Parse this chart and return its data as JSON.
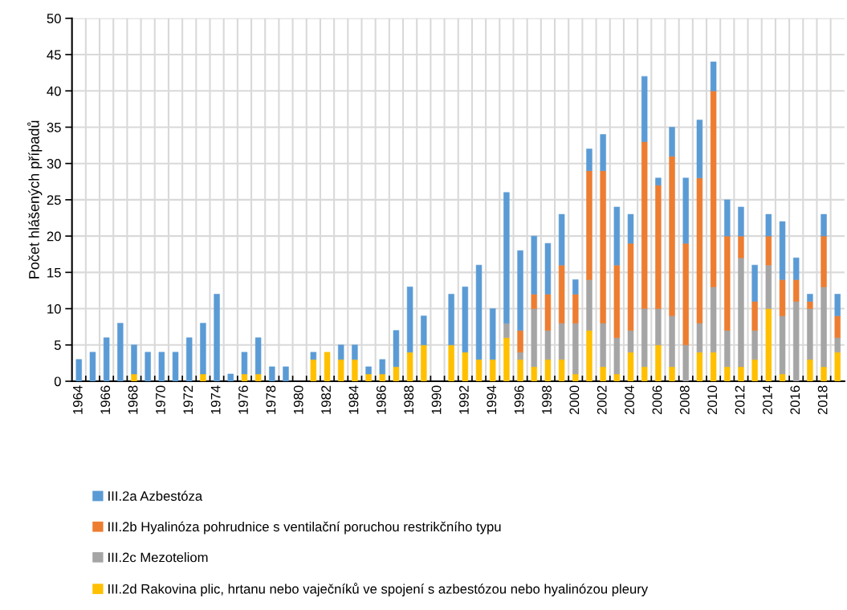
{
  "chart_data": {
    "type": "bar",
    "stacked": true,
    "ylabel": "Počet hlášených případů",
    "categories": [
      "1964",
      null,
      "1966",
      null,
      "1968",
      null,
      "1970",
      null,
      "1972",
      null,
      "1974",
      null,
      "1976",
      null,
      "1978",
      null,
      "1980",
      null,
      "1982",
      null,
      "1984",
      null,
      "1986",
      null,
      "1988",
      null,
      "1990",
      null,
      "1992",
      null,
      "1994",
      null,
      "1996",
      null,
      "1998",
      null,
      "2000",
      null,
      "2002",
      null,
      "2004",
      null,
      "2006",
      null,
      "2008",
      null,
      "2010",
      null,
      "2012",
      null,
      "2014",
      null,
      "2016",
      null,
      "2018",
      null
    ],
    "series": [
      {
        "name": "III.2d Rakovina plic, hrtanu nebo vaječníků ve spojení s azbestózou nebo hyalinózou pleury",
        "color": "#ffc000",
        "values": [
          0,
          0,
          0,
          0,
          1,
          0,
          0,
          0,
          0,
          1,
          0,
          0,
          1,
          1,
          0,
          0,
          0,
          3,
          4,
          3,
          3,
          1,
          1,
          2,
          4,
          5,
          0,
          5,
          4,
          3,
          3,
          6,
          3,
          2,
          3,
          3,
          1,
          7,
          2,
          1,
          4,
          2,
          5,
          2,
          0,
          4,
          4,
          2,
          2,
          3,
          10,
          1,
          0,
          3,
          2,
          4
        ]
      },
      {
        "name": "III.2c Mezoteliom",
        "color": "#a5a5a5",
        "values": [
          0,
          0,
          0,
          0,
          0,
          0,
          0,
          0,
          0,
          0,
          0,
          0,
          0,
          0,
          0,
          0,
          0,
          0,
          0,
          0,
          0,
          0,
          0,
          0,
          0,
          0,
          0,
          0,
          0,
          0,
          0,
          2,
          1,
          8,
          4,
          5,
          7,
          7,
          6,
          5,
          3,
          8,
          5,
          7,
          5,
          4,
          9,
          5,
          15,
          4,
          6,
          8,
          11,
          7,
          11,
          2
        ]
      },
      {
        "name": "III.2b Hyalinóza pohrudnice s ventilační poruchou restrikčního typu",
        "color": "#ed7d31",
        "values": [
          0,
          0,
          0,
          0,
          0,
          0,
          0,
          0,
          0,
          0,
          0,
          0,
          0,
          0,
          0,
          0,
          0,
          0,
          0,
          0,
          0,
          0,
          0,
          0,
          0,
          0,
          0,
          0,
          0,
          0,
          0,
          0,
          3,
          2,
          5,
          8,
          4,
          15,
          21,
          10,
          12,
          23,
          17,
          22,
          14,
          20,
          27,
          13,
          3,
          4,
          4,
          5,
          3,
          1,
          7,
          3
        ]
      },
      {
        "name": "III.2a Azbestóza",
        "color": "#5b9bd5",
        "values": [
          3,
          4,
          6,
          8,
          4,
          4,
          4,
          4,
          6,
          7,
          12,
          1,
          3,
          5,
          2,
          2,
          0,
          1,
          0,
          2,
          2,
          1,
          2,
          5,
          9,
          4,
          0,
          7,
          9,
          13,
          7,
          18,
          11,
          8,
          7,
          7,
          2,
          3,
          5,
          8,
          4,
          9,
          1,
          4,
          9,
          8,
          4,
          5,
          4,
          5,
          3,
          8,
          3,
          1,
          3,
          3
        ]
      }
    ],
    "ylim": [
      0,
      50
    ],
    "yticks": [
      0,
      5,
      10,
      15,
      20,
      25,
      30,
      35,
      40,
      45,
      50
    ],
    "grid": true,
    "legend": "bottom"
  }
}
